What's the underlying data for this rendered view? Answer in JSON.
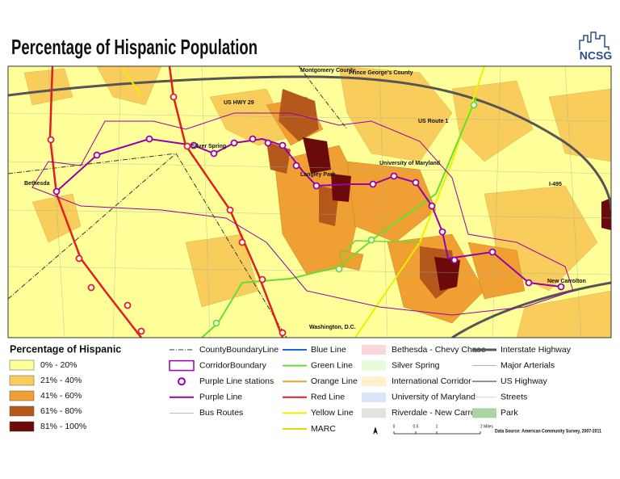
{
  "title": "Percentage of Hispanic Population",
  "logo": "NCSG",
  "map_labels": [
    "Montgomery County",
    "Prince George's County",
    "US HWY 29",
    "US Route 1",
    "Silver Spring",
    "Bethesda",
    "Langley Park",
    "University of Maryland",
    "I-495",
    "New Carrolton",
    "Washington, D.C."
  ],
  "legend": {
    "title": "Percentage of Hispanic",
    "items": [
      {
        "label": "0% - 20%",
        "color": "#ffff99"
      },
      {
        "label": "21% - 40%",
        "color": "#f9cd5c"
      },
      {
        "label": "41% - 60%",
        "color": "#f0a033"
      },
      {
        "label": "61% - 80%",
        "color": "#b4581c"
      },
      {
        "label": "81% - 100%",
        "color": "#6b0a0a"
      }
    ]
  },
  "layers": [
    [
      "CountyBoundaryLine",
      "CorridorBoundary",
      "Purple Line stations",
      "Purple Line",
      "Bus Routes"
    ],
    [
      "Blue Line",
      "Green Line",
      "Orange Line",
      "Red Line",
      "Yellow Line",
      "MARC"
    ],
    [
      "Bethesda - Chevy Chase",
      "Silver Spring",
      "International Corridor",
      "University of Maryland",
      "Riverdale - New Carrolton"
    ],
    [
      "Interstate Highway",
      "Major Arterials",
      "US Highway",
      "Streets",
      "Park"
    ]
  ],
  "scale": [
    "0",
    "0.5",
    "1",
    "2 Miles"
  ],
  "source": "Data Source: American Community Survey, 2007-2011"
}
